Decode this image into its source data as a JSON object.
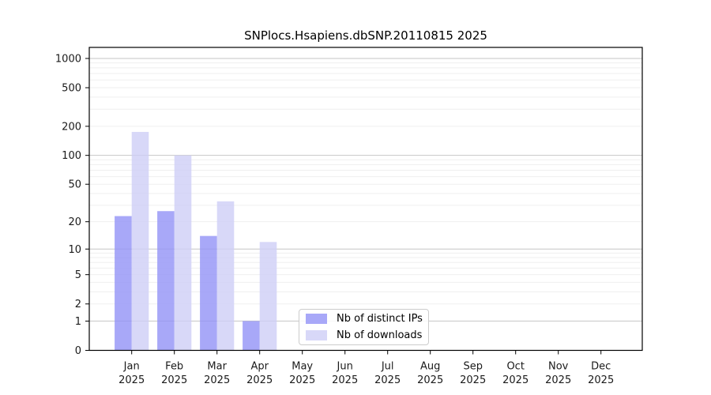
{
  "figure": {
    "title": "SNPlocs.Hsapiens.dbSNP.20110815 2025"
  },
  "chart_data": {
    "type": "bar",
    "title": "SNPlocs.Hsapiens.dbSNP.20110815 2025",
    "y_scale": "log1p",
    "ylim": [
      0,
      1300
    ],
    "grid": "horizontal",
    "legend_position": "inside-bottom-center",
    "categories": [
      "Jan",
      "Feb",
      "Mar",
      "Apr",
      "May",
      "Jun",
      "Jul",
      "Aug",
      "Sep",
      "Oct",
      "Nov",
      "Dec"
    ],
    "category_year": "2025",
    "y_ticks": [
      0,
      1,
      2,
      5,
      10,
      20,
      50,
      100,
      200,
      500,
      1000
    ],
    "series": [
      {
        "name": "Nb of distinct IPs",
        "color": "#a8a8f8",
        "values": [
          23,
          26,
          14,
          1,
          0,
          0,
          0,
          0,
          0,
          0,
          0,
          0
        ]
      },
      {
        "name": "Nb of downloads",
        "color": "#d8d8f8",
        "values": [
          175,
          100,
          33,
          12,
          0,
          0,
          0,
          0,
          0,
          0,
          0,
          0
        ]
      }
    ],
    "colors": {
      "major_grid": "#c6c6c6",
      "minor_grid": "#efefef",
      "axis": "#000000",
      "text": "#1a1a1a"
    }
  }
}
